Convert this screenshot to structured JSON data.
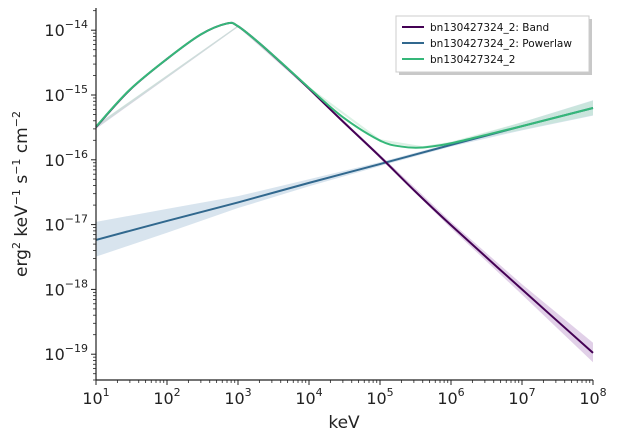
{
  "chart_data": {
    "type": "line",
    "xlabel": "keV",
    "ylabel_parts": {
      "erg": "erg",
      "erg_exp": "2",
      "kev": "keV",
      "kev_exp": "−1",
      "s": "s",
      "s_exp": "−1",
      "cm": "cm",
      "cm_exp": "−2"
    },
    "x_scale": "log",
    "y_scale": "log",
    "xlim": [
      10,
      100000000
    ],
    "ylim": [
      4e-20,
      2.2e-14
    ],
    "x_ticks": [
      {
        "base": "10",
        "exp": "1",
        "value": 10
      },
      {
        "base": "10",
        "exp": "2",
        "value": 100
      },
      {
        "base": "10",
        "exp": "3",
        "value": 1000
      },
      {
        "base": "10",
        "exp": "4",
        "value": 10000
      },
      {
        "base": "10",
        "exp": "5",
        "value": 100000
      },
      {
        "base": "10",
        "exp": "6",
        "value": 1000000
      },
      {
        "base": "10",
        "exp": "7",
        "value": 10000000
      },
      {
        "base": "10",
        "exp": "8",
        "value": 100000000
      }
    ],
    "y_ticks": [
      {
        "base": "10",
        "exp": "−19",
        "value": 1e-19
      },
      {
        "base": "10",
        "exp": "−18",
        "value": 1e-18
      },
      {
        "base": "10",
        "exp": "−17",
        "value": 1e-17
      },
      {
        "base": "10",
        "exp": "−16",
        "value": 1e-16
      },
      {
        "base": "10",
        "exp": "−15",
        "value": 1e-15
      },
      {
        "base": "10",
        "exp": "−14",
        "value": 1e-14
      }
    ],
    "grid": false,
    "legend_position": "top-right",
    "series": [
      {
        "name": "bn130427324_2: Band",
        "color": "#440154",
        "band_color": "#c9a9d6",
        "points": [
          [
            10,
            3.2e-16
          ],
          [
            30,
            1.2e-15
          ],
          [
            100,
            3.6e-15
          ],
          [
            300,
            8.6e-15
          ],
          [
            700,
            1.27e-14
          ],
          [
            1000,
            1.15e-14
          ],
          [
            2000,
            6.3e-15
          ],
          [
            5000,
            2.55e-15
          ],
          [
            10000,
            1.25e-15
          ],
          [
            30000,
            3.9e-16
          ],
          [
            100000,
            1.12e-16
          ],
          [
            300000,
            3.4e-17
          ],
          [
            1000000,
            9.8e-18
          ],
          [
            10000000,
            1e-18
          ],
          [
            100000000,
            1.05e-19
          ]
        ],
        "band_lower": [
          [
            10,
            3e-16
          ],
          [
            1000,
            1.12e-14
          ],
          [
            10000,
            1.2e-15
          ],
          [
            100000,
            1.05e-16
          ],
          [
            1000000,
            8.8e-18
          ],
          [
            10000000,
            8.3e-19
          ],
          [
            100000000,
            7.5e-20
          ]
        ],
        "band_upper": [
          [
            10,
            3.4e-16
          ],
          [
            1000,
            1.18e-14
          ],
          [
            10000,
            1.3e-15
          ],
          [
            100000,
            1.2e-16
          ],
          [
            1000000,
            1.1e-17
          ],
          [
            10000000,
            1.2e-18
          ],
          [
            100000000,
            1.5e-19
          ]
        ]
      },
      {
        "name": "bn130427324_2: Powerlaw",
        "color": "#31688e",
        "band_color": "#b8cde0",
        "points": [
          [
            10,
            5.8e-18
          ],
          [
            100,
            1.14e-17
          ],
          [
            1000,
            2.2e-17
          ],
          [
            10000,
            4.4e-17
          ],
          [
            100000,
            8.6e-17
          ],
          [
            1000000,
            1.7e-16
          ],
          [
            10000000,
            3.3e-16
          ],
          [
            100000000,
            6.3e-16
          ]
        ],
        "band_lower": [
          [
            10,
            3.2e-18
          ],
          [
            100,
            7.5e-18
          ],
          [
            1000,
            1.8e-17
          ],
          [
            10000,
            3.9e-17
          ],
          [
            100000,
            8e-17
          ],
          [
            1000000,
            1.6e-16
          ],
          [
            10000000,
            2.85e-16
          ],
          [
            100000000,
            4.8e-16
          ]
        ],
        "band_upper": [
          [
            10,
            1.1e-17
          ],
          [
            100,
            1.75e-17
          ],
          [
            1000,
            2.75e-17
          ],
          [
            10000,
            5e-17
          ],
          [
            100000,
            9.2e-17
          ],
          [
            1000000,
            1.8e-16
          ],
          [
            10000000,
            3.8e-16
          ],
          [
            100000000,
            8.3e-16
          ]
        ]
      },
      {
        "name": "bn130427324_2",
        "color": "#35b779",
        "band_color": "#bfe5cf",
        "points": [
          [
            10,
            3.25e-16
          ],
          [
            30,
            1.21e-15
          ],
          [
            100,
            3.61e-15
          ],
          [
            300,
            8.62e-15
          ],
          [
            700,
            1.272e-14
          ],
          [
            1000,
            1.152e-14
          ],
          [
            2000,
            6.32e-15
          ],
          [
            5000,
            2.58e-15
          ],
          [
            10000,
            1.29e-15
          ],
          [
            30000,
            4.55e-16
          ],
          [
            100000,
            1.98e-16
          ],
          [
            200000,
            1.6e-16
          ],
          [
            400000,
            1.55e-16
          ],
          [
            1000000,
            1.8e-16
          ],
          [
            3000000,
            2.4e-16
          ],
          [
            10000000,
            3.31e-16
          ],
          [
            100000000,
            6.3e-16
          ]
        ],
        "band_lower": [
          [
            10,
            3.05e-16
          ],
          [
            1000,
            1.12e-14
          ],
          [
            10000,
            1.24e-15
          ],
          [
            100000,
            1.88e-16
          ],
          [
            400000,
            1.5e-16
          ],
          [
            1000000,
            1.72e-16
          ],
          [
            10000000,
            2.9e-16
          ],
          [
            100000000,
            4.9e-16
          ]
        ],
        "band_upper": [
          [
            10,
            3.45e-16
          ],
          [
            1000,
            1.18e-14
          ],
          [
            10000,
            1.34e-15
          ],
          [
            100000,
            2.08e-16
          ],
          [
            400000,
            1.62e-16
          ],
          [
            1000000,
            1.9e-16
          ],
          [
            10000000,
            3.8e-16
          ],
          [
            100000000,
            8.2e-16
          ]
        ]
      }
    ]
  }
}
